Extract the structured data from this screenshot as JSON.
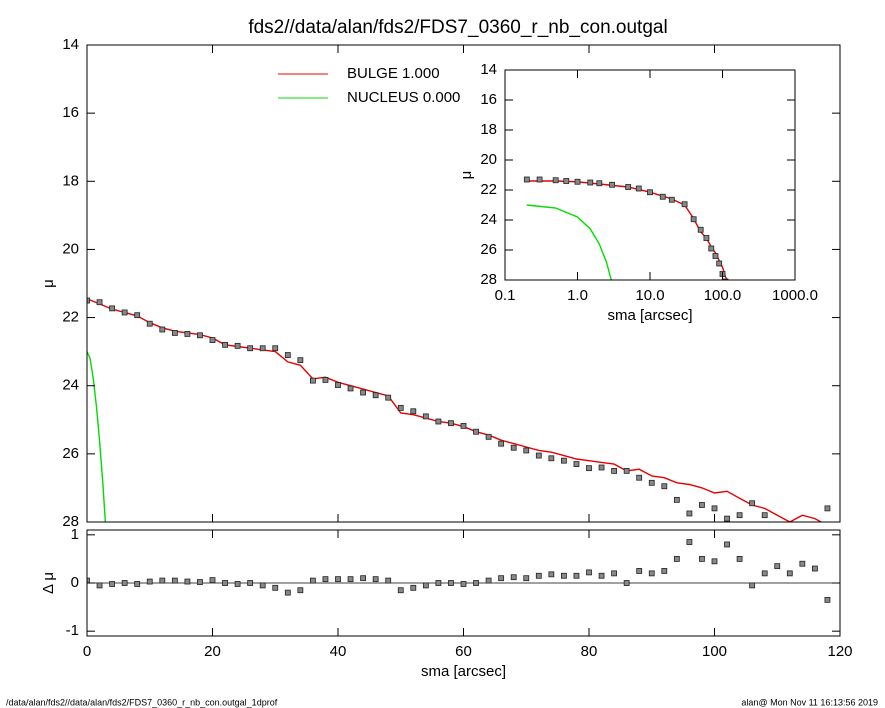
{
  "chart_data": [
    {
      "type": "line",
      "title": "fds2//data/alan/fds2/FDS7_0360_r_nb_con.outgal",
      "ylabel": "μ",
      "xlim": [
        0,
        120
      ],
      "ylim": [
        28,
        14
      ],
      "xticks": [
        0,
        20,
        40,
        60,
        80,
        100,
        120
      ],
      "yticks": [
        14,
        16,
        18,
        20,
        22,
        24,
        26,
        28
      ],
      "points": {
        "color": "#888888",
        "x": [
          0,
          2,
          4,
          6,
          8,
          10,
          12,
          14,
          16,
          18,
          20,
          22,
          24,
          26,
          28,
          30,
          32,
          34,
          36,
          38,
          40,
          42,
          44,
          46,
          48,
          50,
          52,
          54,
          56,
          58,
          60,
          62,
          64,
          66,
          68,
          70,
          72,
          74,
          76,
          78,
          80,
          82,
          84,
          86,
          88,
          90,
          92,
          94,
          96,
          98,
          100,
          102,
          104,
          106,
          108,
          110,
          112,
          114,
          116,
          118
        ],
        "values": [
          21.5,
          21.55,
          21.73,
          21.85,
          21.93,
          22.18,
          22.35,
          22.45,
          22.48,
          22.52,
          22.66,
          22.8,
          22.83,
          22.9,
          22.9,
          22.9,
          23.1,
          23.25,
          23.85,
          23.83,
          23.98,
          24.08,
          24.2,
          24.28,
          24.35,
          24.65,
          24.75,
          24.9,
          25.05,
          25.1,
          25.18,
          25.35,
          25.5,
          25.7,
          25.82,
          25.9,
          26.05,
          26.13,
          26.2,
          26.3,
          26.42,
          26.4,
          26.5,
          26.5,
          26.7,
          26.85,
          26.95,
          27.35,
          27.75,
          27.5,
          27.6,
          27.9,
          27.8,
          27.45,
          27.8,
          28.15,
          28.15,
          28.2,
          28.2,
          27.6
        ]
      },
      "series": [
        {
          "name": "BULGE  1.000",
          "color": "#e80000",
          "x": [
            0,
            2,
            4,
            6,
            8,
            10,
            12,
            14,
            16,
            18,
            20,
            22,
            24,
            26,
            28,
            30,
            32,
            34,
            36,
            38,
            40,
            42,
            44,
            46,
            48,
            50,
            52,
            54,
            56,
            58,
            60,
            62,
            64,
            66,
            68,
            70,
            72,
            74,
            76,
            78,
            80,
            82,
            84,
            86,
            88,
            90,
            92,
            94,
            96,
            98,
            100,
            102,
            104,
            106,
            108,
            110,
            112,
            114,
            116,
            118
          ],
          "values": [
            21.45,
            21.6,
            21.75,
            21.85,
            21.95,
            22.15,
            22.3,
            22.4,
            22.45,
            22.5,
            22.6,
            22.8,
            22.85,
            22.9,
            22.95,
            23.0,
            23.3,
            23.4,
            23.8,
            23.75,
            23.9,
            24.0,
            24.1,
            24.2,
            24.3,
            24.8,
            24.85,
            24.95,
            25.05,
            25.1,
            25.2,
            25.35,
            25.45,
            25.6,
            25.7,
            25.8,
            25.9,
            25.95,
            26.05,
            26.15,
            26.2,
            26.25,
            26.3,
            26.5,
            26.45,
            26.65,
            26.7,
            26.85,
            26.9,
            27.0,
            27.15,
            27.1,
            27.3,
            27.5,
            27.6,
            27.8,
            28.0,
            27.8,
            27.9,
            28.1
          ]
        },
        {
          "name": "NUCLEUS  0.000",
          "color": "#00dd00",
          "x": [
            0,
            0.5,
            1,
            1.5,
            2,
            2.5,
            3
          ],
          "values": [
            23.0,
            23.2,
            23.8,
            24.6,
            25.6,
            26.8,
            28.2
          ]
        }
      ]
    },
    {
      "type": "scatter",
      "xlabel": "sma [arcsec]",
      "ylabel": "Δ μ",
      "xlim": [
        0,
        120
      ],
      "ylim": [
        -1.1,
        1.1
      ],
      "xticks": [
        0,
        20,
        40,
        60,
        80,
        100,
        120
      ],
      "yticks": [
        -1,
        0,
        1
      ],
      "color": "#888888",
      "x": [
        0,
        2,
        4,
        6,
        8,
        10,
        12,
        14,
        16,
        18,
        20,
        22,
        24,
        26,
        28,
        30,
        32,
        34,
        36,
        38,
        40,
        42,
        44,
        46,
        48,
        50,
        52,
        54,
        56,
        58,
        60,
        62,
        64,
        66,
        68,
        70,
        72,
        74,
        76,
        78,
        80,
        82,
        84,
        86,
        88,
        90,
        92,
        94,
        96,
        98,
        100,
        102,
        104,
        106,
        108,
        110,
        112,
        114,
        116,
        118
      ],
      "values": [
        0.05,
        -0.05,
        -0.02,
        0.0,
        -0.02,
        0.03,
        0.05,
        0.05,
        0.03,
        0.02,
        0.06,
        0.0,
        -0.02,
        0.0,
        -0.05,
        -0.1,
        -0.2,
        -0.15,
        0.05,
        0.08,
        0.08,
        0.08,
        0.1,
        0.08,
        0.05,
        -0.15,
        -0.1,
        -0.05,
        0.0,
        0.0,
        -0.02,
        0.0,
        0.05,
        0.1,
        0.12,
        0.1,
        0.15,
        0.18,
        0.15,
        0.15,
        0.22,
        0.15,
        0.2,
        0.0,
        0.25,
        0.2,
        0.25,
        0.5,
        0.85,
        0.5,
        0.45,
        0.8,
        0.5,
        -0.05,
        0.2,
        0.35,
        0.2,
        0.4,
        0.3,
        -0.35
      ]
    },
    {
      "type": "line",
      "xlabel": "sma [arcsec]",
      "ylabel": "μ",
      "xlog": true,
      "xlim": [
        0.1,
        1000
      ],
      "ylim": [
        28,
        14
      ],
      "xticks": [
        0.1,
        {
          "value": 1,
          "label": "1.0"
        },
        {
          "value": 10,
          "label": "10.0"
        },
        {
          "value": 100,
          "label": "100.0"
        },
        {
          "value": 1000,
          "label": "1000.0"
        }
      ],
      "yticks": [
        14,
        16,
        18,
        20,
        22,
        24,
        26,
        28
      ],
      "points": {
        "color": "#888888",
        "x": [
          0.2,
          0.3,
          0.5,
          0.7,
          1,
          1.5,
          2,
          3,
          5,
          7,
          10,
          15,
          20,
          30,
          40,
          50,
          60,
          70,
          80,
          90,
          100,
          110,
          120
        ],
        "values": [
          21.3,
          21.3,
          21.35,
          21.4,
          21.45,
          21.5,
          21.55,
          21.65,
          21.8,
          21.9,
          22.15,
          22.45,
          22.65,
          22.95,
          23.95,
          24.65,
          25.2,
          25.9,
          26.4,
          26.9,
          27.6,
          28.1,
          28.3
        ]
      },
      "series": [
        {
          "color": "#e80000",
          "x": [
            0.2,
            0.5,
            1,
            2,
            5,
            10,
            20,
            30,
            40,
            50,
            60,
            70,
            80,
            90,
            100,
            110,
            120
          ],
          "values": [
            21.4,
            21.4,
            21.45,
            21.6,
            21.8,
            22.15,
            22.6,
            23.0,
            23.9,
            24.8,
            25.2,
            25.8,
            26.2,
            26.7,
            27.15,
            27.8,
            28.1
          ]
        },
        {
          "color": "#00dd00",
          "x": [
            0.2,
            0.5,
            1,
            1.5,
            2,
            2.5,
            3
          ],
          "values": [
            23.0,
            23.2,
            23.8,
            24.6,
            25.6,
            26.8,
            28.2
          ]
        }
      ]
    }
  ],
  "footer": {
    "left": "/data/alan/fds2//data/alan/fds2/FDS7_0360_r_nb_con.outgal_1dprof",
    "right": "alan@  Mon Nov 11 16:13:56 2019"
  }
}
